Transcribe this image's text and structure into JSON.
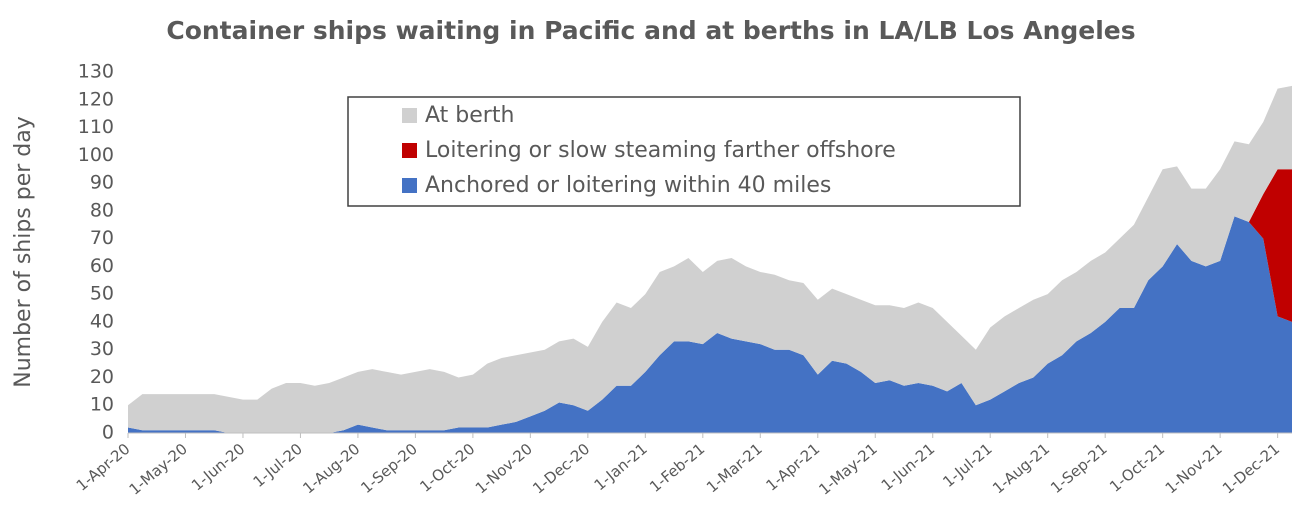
{
  "chart_data": {
    "type": "stacked-area",
    "title": "Container ships waiting in Pacific and at berths in LA/LB Los Angeles",
    "y_label": "Number of ships per day",
    "categories": [
      "1-Apr-20",
      null,
      null,
      null,
      "1-May-20",
      null,
      null,
      null,
      "1-Jun-20",
      null,
      null,
      null,
      "1-Jul-20",
      null,
      null,
      null,
      "1-Aug-20",
      null,
      null,
      null,
      "1-Sep-20",
      null,
      null,
      null,
      "1-Oct-20",
      null,
      null,
      null,
      "1-Nov-20",
      null,
      null,
      null,
      "1-Dec-20",
      null,
      null,
      null,
      "1-Jan-21",
      null,
      null,
      null,
      "1-Feb-21",
      null,
      null,
      null,
      "1-Mar-21",
      null,
      null,
      null,
      "1-Apr-21",
      null,
      null,
      null,
      "1-May-21",
      null,
      null,
      null,
      "1-Jun-21",
      null,
      null,
      null,
      "1-Jul-21",
      null,
      null,
      null,
      "1-Aug-21",
      null,
      null,
      null,
      "1-Sep-21",
      null,
      null,
      null,
      "1-Oct-21",
      null,
      null,
      null,
      "1-Nov-21",
      null,
      null,
      null,
      "1-Dec-21",
      null
    ],
    "series": [
      {
        "name": "Anchored or loitering within 40 miles",
        "color": "#4472c4",
        "values": [
          2,
          1,
          1,
          1,
          1,
          1,
          1,
          0,
          0,
          0,
          0,
          0,
          0,
          0,
          0,
          1,
          3,
          2,
          1,
          1,
          1,
          1,
          1,
          2,
          2,
          2,
          3,
          4,
          6,
          8,
          11,
          10,
          8,
          12,
          17,
          17,
          22,
          28,
          33,
          33,
          32,
          36,
          34,
          33,
          32,
          30,
          30,
          28,
          21,
          26,
          25,
          22,
          18,
          19,
          17,
          18,
          17,
          15,
          18,
          10,
          12,
          15,
          18,
          20,
          25,
          28,
          33,
          36,
          40,
          45,
          45,
          55,
          60,
          68,
          62,
          60,
          62,
          78,
          76,
          70,
          42,
          40
        ]
      },
      {
        "name": "Loitering or slow steaming farther offshore",
        "color": "#c00000",
        "values": [
          0,
          0,
          0,
          0,
          0,
          0,
          0,
          0,
          0,
          0,
          0,
          0,
          0,
          0,
          0,
          0,
          0,
          0,
          0,
          0,
          0,
          0,
          0,
          0,
          0,
          0,
          0,
          0,
          0,
          0,
          0,
          0,
          0,
          0,
          0,
          0,
          0,
          0,
          0,
          0,
          0,
          0,
          0,
          0,
          0,
          0,
          0,
          0,
          0,
          0,
          0,
          0,
          0,
          0,
          0,
          0,
          0,
          0,
          0,
          0,
          0,
          0,
          0,
          0,
          0,
          0,
          0,
          0,
          0,
          0,
          0,
          0,
          0,
          0,
          0,
          0,
          0,
          0,
          0,
          16,
          53,
          55
        ]
      },
      {
        "name": "At berth",
        "color": "#d0d0d0",
        "values": [
          8,
          13,
          13,
          13,
          13,
          13,
          13,
          13,
          12,
          12,
          16,
          18,
          18,
          17,
          18,
          19,
          19,
          21,
          21,
          20,
          21,
          22,
          21,
          18,
          19,
          23,
          24,
          24,
          23,
          22,
          22,
          24,
          23,
          28,
          30,
          28,
          28,
          30,
          27,
          30,
          26,
          26,
          29,
          27,
          26,
          27,
          25,
          26,
          27,
          26,
          25,
          26,
          28,
          27,
          28,
          29,
          28,
          25,
          17,
          20,
          26,
          27,
          27,
          28,
          25,
          27,
          25,
          26,
          25,
          25,
          30,
          30,
          35,
          28,
          26,
          28,
          33,
          27,
          28,
          26,
          29,
          30
        ]
      }
    ],
    "ylim": [
      0,
      130
    ],
    "yticks": [
      0,
      10,
      20,
      30,
      40,
      50,
      60,
      70,
      80,
      90,
      100,
      110,
      120,
      130
    ],
    "grid": false
  }
}
